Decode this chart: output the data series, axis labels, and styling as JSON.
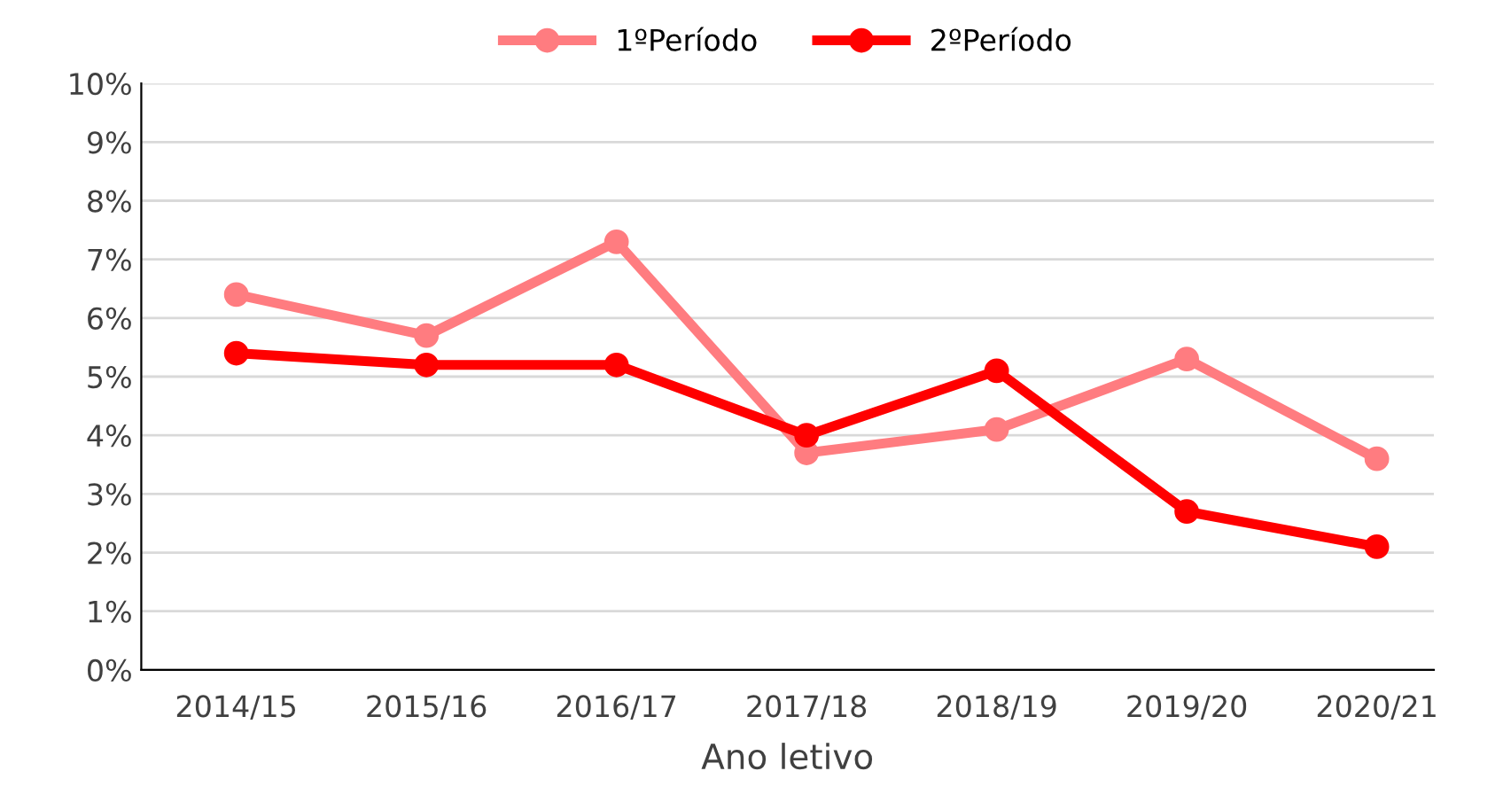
{
  "chart_data": {
    "type": "line",
    "xlabel": "Ano letivo",
    "categories": [
      "2014/15",
      "2015/16",
      "2016/17",
      "2017/18",
      "2018/19",
      "2019/20",
      "2020/21"
    ],
    "series": [
      {
        "name": "1ºPeríodo",
        "color": "#ff7c80",
        "values": [
          6.4,
          5.7,
          7.3,
          3.7,
          4.1,
          5.3,
          3.6
        ]
      },
      {
        "name": "2ºPeríodo",
        "color": "#ff0000",
        "values": [
          5.4,
          5.2,
          5.2,
          4.0,
          5.1,
          2.7,
          2.1
        ]
      }
    ],
    "ylim": [
      0,
      10
    ],
    "yticks": [
      {
        "value": 0,
        "label": "0%"
      },
      {
        "value": 1,
        "label": "1%"
      },
      {
        "value": 2,
        "label": "2%"
      },
      {
        "value": 3,
        "label": "3%"
      },
      {
        "value": 4,
        "label": "4%"
      },
      {
        "value": 5,
        "label": "5%"
      },
      {
        "value": 6,
        "label": "6%"
      },
      {
        "value": 7,
        "label": "7%"
      },
      {
        "value": 8,
        "label": "8%"
      },
      {
        "value": 9,
        "label": "9%"
      },
      {
        "value": 10,
        "label": "10%"
      }
    ],
    "grid": "y",
    "legend": "top",
    "marker": "circle",
    "line_style": "solid"
  }
}
